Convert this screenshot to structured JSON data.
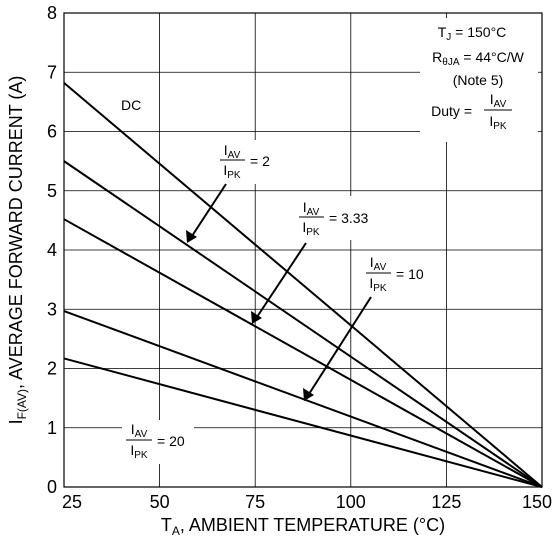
{
  "chart_data": {
    "type": "line",
    "xlabel_main": "T",
    "xlabel_sub": "A",
    "xlabel_rest": ", AMBIENT TEMPERATURE (°C)",
    "ylabel_main": "I",
    "ylabel_sub": "F(AV)",
    "ylabel_rest": ", AVERAGE FORWARD CURRENT (A)",
    "xlim": [
      25,
      150
    ],
    "ylim": [
      0,
      8
    ],
    "x_ticks": [
      25,
      50,
      75,
      100,
      125,
      150
    ],
    "y_ticks": [
      0,
      1,
      2,
      3,
      4,
      5,
      6,
      7,
      8
    ],
    "grid": true,
    "series": [
      {
        "name": "DC",
        "x": [
          25,
          150
        ],
        "y": [
          6.82,
          0
        ]
      },
      {
        "name": "2",
        "x": [
          25,
          150
        ],
        "y": [
          5.5,
          0
        ]
      },
      {
        "name": "3.33",
        "x": [
          25,
          150
        ],
        "y": [
          4.52,
          0
        ]
      },
      {
        "name": "10",
        "x": [
          25,
          150
        ],
        "y": [
          2.97,
          0
        ]
      },
      {
        "name": "20",
        "x": [
          25,
          150
        ],
        "y": [
          2.17,
          0
        ]
      }
    ],
    "labels": {
      "dc": "DC",
      "iav_main": "I",
      "iav_sub": "AV",
      "ipk_main": "I",
      "ipk_sub": "PK",
      "eq2": "= 2",
      "eq333": "= 3.33",
      "eq10": "= 10",
      "eq20": "= 20"
    },
    "conditions": {
      "tj_main": "T",
      "tj_sub": "J",
      "tj_rest": " = 150°C",
      "r_main": "R",
      "r_sub": "θJA",
      "r_rest": " = 44°C/W",
      "note": "(Note 5)",
      "duty": "Duty ="
    }
  }
}
